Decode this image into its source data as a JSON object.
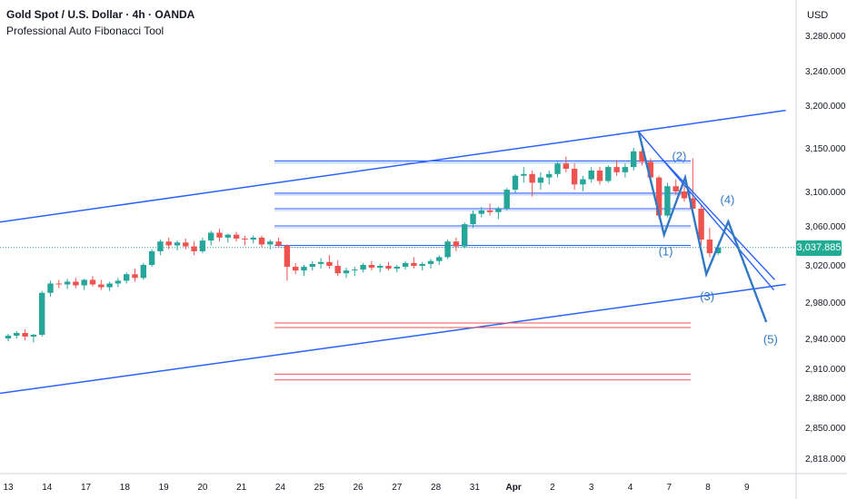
{
  "header": {
    "title": "Gold Spot / U.S. Dollar · 4h · OANDA",
    "indicator": "Professional Auto Fibonacci Tool",
    "currency": "USD",
    "last_price": "3,037.885"
  },
  "colors": {
    "up": "#26a69a",
    "down": "#ef5350",
    "channel": "#2962ff",
    "fib_blue": "#2962ff",
    "fib_red": "#ef5350",
    "wave": "#3179c4",
    "price_tag": "#22ab94"
  },
  "chart_data": {
    "type": "candlestick",
    "yaxis": {
      "ticks": [
        3280,
        3240,
        3200,
        3150,
        3100,
        3060,
        3020,
        2980,
        2940,
        2910,
        2880,
        2850,
        2818
      ],
      "tick_labels": [
        "3,280.000",
        "3,240.000",
        "3,200.000",
        "3,150.000",
        "3,100.000",
        "3,060.000",
        "3,020.000",
        "2,980.000",
        "2,940.000",
        "2,910.000",
        "2,880.000",
        "2,850.000",
        "2,818.000"
      ]
    },
    "xaxis": {
      "tick_labels": [
        "13",
        "14",
        "17",
        "18",
        "19",
        "20",
        "21",
        "24",
        "25",
        "26",
        "27",
        "28",
        "31",
        "Apr",
        "2",
        "3",
        "4",
        "7",
        "8",
        "9"
      ],
      "tick_index": [
        0,
        4.6,
        9.2,
        13.8,
        18.4,
        23.0,
        27.6,
        32.2,
        36.8,
        41.4,
        46.0,
        50.6,
        55.2,
        59.8,
        64.4,
        69.0,
        73.6,
        78.2,
        82.8,
        87.4
      ]
    },
    "candles": [
      [
        2940,
        2945,
        2937,
        2943
      ],
      [
        2943,
        2948,
        2940,
        2946
      ],
      [
        2946,
        2950,
        2938,
        2942
      ],
      [
        2942,
        2945,
        2936,
        2944
      ],
      [
        2944,
        2992,
        2942,
        2990
      ],
      [
        2990,
        3003,
        2986,
        3000
      ],
      [
        3000,
        3004,
        2995,
        2999
      ],
      [
        2999,
        3005,
        2994,
        3002
      ],
      [
        3002,
        3006,
        2995,
        2998
      ],
      [
        2998,
        3005,
        2993,
        3004
      ],
      [
        3004,
        3008,
        2997,
        2999
      ],
      [
        2999,
        3004,
        2993,
        2996
      ],
      [
        2996,
        3002,
        2992,
        3000
      ],
      [
        3000,
        3006,
        2996,
        3003
      ],
      [
        3003,
        3012,
        3000,
        3010
      ],
      [
        3010,
        3016,
        3002,
        3006
      ],
      [
        3006,
        3022,
        3004,
        3020
      ],
      [
        3020,
        3036,
        3018,
        3034
      ],
      [
        3034,
        3046,
        3030,
        3044
      ],
      [
        3044,
        3048,
        3036,
        3040
      ],
      [
        3040,
        3045,
        3035,
        3043
      ],
      [
        3043,
        3047,
        3036,
        3039
      ],
      [
        3039,
        3044,
        3030,
        3034
      ],
      [
        3034,
        3048,
        3032,
        3045
      ],
      [
        3045,
        3055,
        3040,
        3053
      ],
      [
        3053,
        3057,
        3044,
        3048
      ],
      [
        3048,
        3052,
        3043,
        3051
      ],
      [
        3051,
        3054,
        3044,
        3047
      ],
      [
        3047,
        3050,
        3040,
        3046
      ],
      [
        3046,
        3050,
        3042,
        3048
      ],
      [
        3048,
        3050,
        3038,
        3041
      ],
      [
        3041,
        3046,
        3036,
        3044
      ],
      [
        3044,
        3048,
        3038,
        3040
      ],
      [
        3040,
        3041,
        3003,
        3018
      ],
      [
        3018,
        3022,
        3010,
        3014
      ],
      [
        3014,
        3020,
        3008,
        3018
      ],
      [
        3018,
        3024,
        3014,
        3021
      ],
      [
        3021,
        3027,
        3016,
        3023
      ],
      [
        3023,
        3030,
        3016,
        3019
      ],
      [
        3019,
        3025,
        3008,
        3011
      ],
      [
        3011,
        3017,
        3006,
        3014
      ],
      [
        3014,
        3018,
        3008,
        3015
      ],
      [
        3015,
        3022,
        3012,
        3020
      ],
      [
        3020,
        3024,
        3014,
        3017
      ],
      [
        3017,
        3021,
        3012,
        3019
      ],
      [
        3019,
        3023,
        3014,
        3016
      ],
      [
        3016,
        3020,
        3012,
        3018
      ],
      [
        3018,
        3024,
        3015,
        3022
      ],
      [
        3022,
        3028,
        3016,
        3019
      ],
      [
        3019,
        3023,
        3014,
        3021
      ],
      [
        3021,
        3026,
        3016,
        3024
      ],
      [
        3024,
        3030,
        3020,
        3028
      ],
      [
        3028,
        3046,
        3026,
        3044
      ],
      [
        3044,
        3048,
        3034,
        3039
      ],
      [
        3039,
        3064,
        3037,
        3062
      ],
      [
        3062,
        3078,
        3058,
        3074
      ],
      [
        3074,
        3082,
        3070,
        3078
      ],
      [
        3078,
        3086,
        3072,
        3076
      ],
      [
        3076,
        3082,
        3068,
        3080
      ],
      [
        3080,
        3104,
        3078,
        3102
      ],
      [
        3102,
        3120,
        3098,
        3118
      ],
      [
        3118,
        3128,
        3110,
        3120
      ],
      [
        3120,
        3124,
        3094,
        3110
      ],
      [
        3110,
        3122,
        3102,
        3116
      ],
      [
        3116,
        3124,
        3108,
        3120
      ],
      [
        3120,
        3134,
        3116,
        3132
      ],
      [
        3132,
        3140,
        3122,
        3126
      ],
      [
        3126,
        3132,
        3102,
        3108
      ],
      [
        3108,
        3118,
        3100,
        3114
      ],
      [
        3114,
        3128,
        3110,
        3124
      ],
      [
        3124,
        3128,
        3108,
        3112
      ],
      [
        3112,
        3130,
        3110,
        3128
      ],
      [
        3128,
        3136,
        3118,
        3122
      ],
      [
        3122,
        3132,
        3116,
        3128
      ],
      [
        3128,
        3150,
        3124,
        3146
      ],
      [
        3146,
        3150,
        3130,
        3134
      ],
      [
        3134,
        3138,
        3110,
        3116
      ],
      [
        3116,
        3118,
        3068,
        3072
      ],
      [
        3072,
        3110,
        3070,
        3106
      ],
      [
        3106,
        3114,
        3096,
        3100
      ],
      [
        3100,
        3106,
        3088,
        3092
      ],
      [
        3092,
        3138,
        3074,
        3080
      ],
      [
        3080,
        3084,
        3040,
        3046
      ],
      [
        3046,
        3058,
        3028,
        3032
      ],
      [
        3032,
        3040,
        3030,
        3037.885
      ]
    ],
    "channel_upper": [
      [
        -2,
        3063
      ],
      [
        92,
        3194
      ]
    ],
    "channel_lower": [
      [
        -2,
        2883
      ],
      [
        92,
        2999
      ]
    ],
    "fib_blue_levels": [
      3135,
      3098,
      3080,
      3060,
      3040
    ],
    "fib_red_levels": [
      2957,
      2952,
      2904,
      2898
    ],
    "top_line": 3324,
    "wave_path": [
      [
        74.6,
        3169
      ],
      [
        77.6,
        3051
      ],
      [
        80.1,
        3116
      ],
      [
        82.6,
        3010
      ],
      [
        85.2,
        3065
      ],
      [
        89.7,
        2958
      ]
    ],
    "wave_labels": [
      "(1)",
      "(2)",
      "(3)",
      "(4)",
      "(5)"
    ],
    "wave_label_points": [
      [
        77.8,
        3030
      ],
      [
        79.4,
        3136
      ],
      [
        82.7,
        2982
      ],
      [
        85.1,
        3086
      ],
      [
        90.2,
        2935
      ]
    ],
    "guide_lines": [
      [
        [
          74.6,
          3169
        ],
        [
          90.6,
          2993
        ]
      ],
      [
        [
          77.4,
          3137
        ],
        [
          90.7,
          3004
        ]
      ]
    ]
  }
}
